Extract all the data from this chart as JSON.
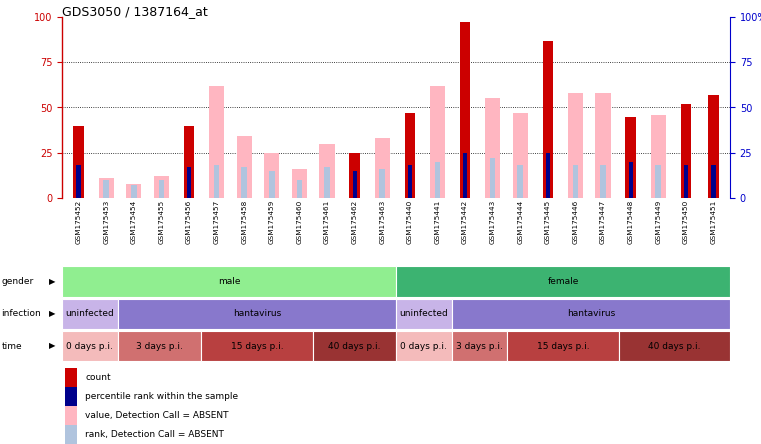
{
  "title": "GDS3050 / 1387164_at",
  "samples": [
    "GSM175452",
    "GSM175453",
    "GSM175454",
    "GSM175455",
    "GSM175456",
    "GSM175457",
    "GSM175458",
    "GSM175459",
    "GSM175460",
    "GSM175461",
    "GSM175462",
    "GSM175463",
    "GSM175440",
    "GSM175441",
    "GSM175442",
    "GSM175443",
    "GSM175444",
    "GSM175445",
    "GSM175446",
    "GSM175447",
    "GSM175448",
    "GSM175449",
    "GSM175450",
    "GSM175451"
  ],
  "count_values": [
    40,
    0,
    0,
    0,
    40,
    0,
    0,
    0,
    0,
    0,
    25,
    0,
    47,
    0,
    97,
    0,
    0,
    87,
    0,
    0,
    45,
    0,
    52,
    57
  ],
  "absent_values": [
    0,
    11,
    8,
    12,
    0,
    62,
    34,
    25,
    16,
    30,
    0,
    33,
    0,
    62,
    0,
    55,
    47,
    0,
    58,
    58,
    0,
    46,
    0,
    0
  ],
  "rank_values": [
    18,
    0,
    0,
    0,
    17,
    0,
    0,
    0,
    0,
    0,
    15,
    0,
    18,
    0,
    25,
    0,
    0,
    25,
    0,
    0,
    20,
    0,
    18,
    18
  ],
  "absent_rank_values": [
    0,
    10,
    7,
    10,
    0,
    18,
    17,
    15,
    10,
    17,
    0,
    16,
    0,
    20,
    0,
    22,
    18,
    0,
    18,
    18,
    0,
    18,
    0,
    0
  ],
  "gender_spans": [
    {
      "label": "male",
      "start": 0,
      "end": 12,
      "color": "#90EE90"
    },
    {
      "label": "female",
      "start": 12,
      "end": 24,
      "color": "#3CB371"
    }
  ],
  "infection_spans": [
    {
      "label": "uninfected",
      "start": 0,
      "end": 2,
      "color": "#C8B4E8"
    },
    {
      "label": "hantavirus",
      "start": 2,
      "end": 12,
      "color": "#8878CC"
    },
    {
      "label": "uninfected",
      "start": 12,
      "end": 14,
      "color": "#C8B4E8"
    },
    {
      "label": "hantavirus",
      "start": 14,
      "end": 24,
      "color": "#8878CC"
    }
  ],
  "time_spans": [
    {
      "label": "0 days p.i.",
      "start": 0,
      "end": 2,
      "color": "#F4BBBB"
    },
    {
      "label": "3 days p.i.",
      "start": 2,
      "end": 5,
      "color": "#D07070"
    },
    {
      "label": "15 days p.i.",
      "start": 5,
      "end": 9,
      "color": "#B84040"
    },
    {
      "label": "40 days p.i.",
      "start": 9,
      "end": 12,
      "color": "#993333"
    },
    {
      "label": "0 days p.i.",
      "start": 12,
      "end": 14,
      "color": "#F4BBBB"
    },
    {
      "label": "3 days p.i.",
      "start": 14,
      "end": 16,
      "color": "#D07070"
    },
    {
      "label": "15 days p.i.",
      "start": 16,
      "end": 20,
      "color": "#B84040"
    },
    {
      "label": "40 days p.i.",
      "start": 20,
      "end": 24,
      "color": "#993333"
    }
  ],
  "count_color": "#CC0000",
  "absent_color": "#FFB6C1",
  "rank_color": "#00008B",
  "absent_rank_color": "#B0C4DE",
  "left_axis_color": "#CC0000",
  "right_axis_color": "#0000CC",
  "legend_items": [
    {
      "color": "#CC0000",
      "label": "count"
    },
    {
      "color": "#00008B",
      "label": "percentile rank within the sample"
    },
    {
      "color": "#FFB6C1",
      "label": "value, Detection Call = ABSENT"
    },
    {
      "color": "#B0C4DE",
      "label": "rank, Detection Call = ABSENT"
    }
  ]
}
